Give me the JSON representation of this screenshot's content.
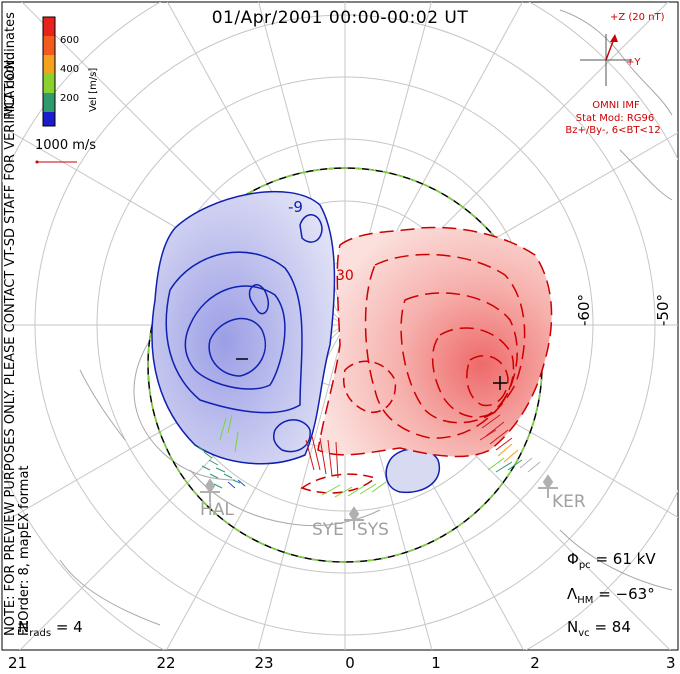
{
  "title": "01/Apr/2001 00:00-00:02 UT",
  "color_scale": {
    "label": "Vel [m/s]",
    "ticks": [
      "600",
      "400",
      "200"
    ],
    "colors": [
      "#e8231e",
      "#f2a21c",
      "#8ad02e",
      "#2f9a6e",
      "#2950c8",
      "#1c1ccc"
    ]
  },
  "side_labels": {
    "coords": "MLT coordinates",
    "note": "NOTE: FOR PREVIEW PURPOSES ONLY. PLEASE CONTACT VT-SD STAFF FOR VERIFICATION.",
    "fit": "FitOrder: 8, mapEX format"
  },
  "vector_scale": "1000 m/s",
  "imf": {
    "z_label": "+Z (20 nT)",
    "y_label": "+Y",
    "source": "OMNI IMF",
    "model_line1": "Stat Mod: RG96",
    "model_line2": "Bz+/By-, 6<BT<12"
  },
  "lat_labels": [
    "-60°",
    "-50°"
  ],
  "stations": [
    "HAL",
    "SYE",
    "SYS",
    "KER"
  ],
  "potential_labels": {
    "positive": "+",
    "negative": "−",
    "contour_tag": "-9",
    "contour_tag2": "30"
  },
  "stats": {
    "phi_sym": "Φ",
    "phi_sub": "pc",
    "phi_value": "= 61 kV",
    "lam_sym": "Λ",
    "lam_sub": "HM",
    "lam_value": "= −63°",
    "nvc_sym": "N",
    "nvc_sub": "vc",
    "nvc_value": "= 84",
    "nrads_sym": "N",
    "nrads_sub": "rads",
    "nrads_value": "= 4"
  },
  "mlt_labels": [
    "21",
    "22",
    "23",
    "0",
    "1",
    "2",
    "3"
  ]
}
